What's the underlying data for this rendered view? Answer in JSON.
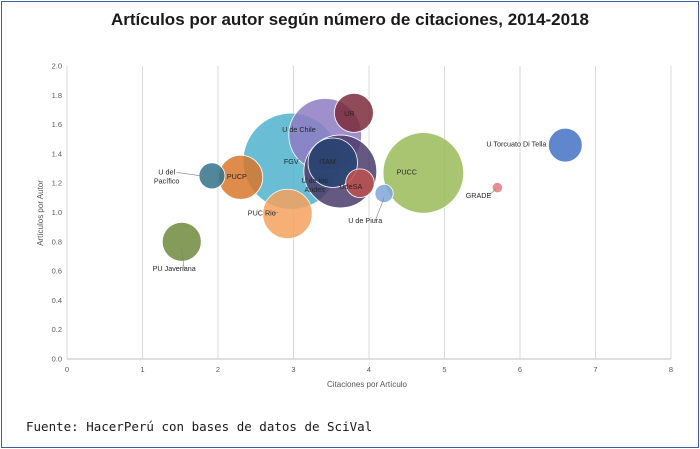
{
  "figure": {
    "title": "Artículos por autor según número de citaciones, 2014-2018",
    "source": "Fuente: HacerPerú con bases de datos de SciVal"
  },
  "chart_data": {
    "type": "scatter",
    "subtype": "bubble",
    "title": "Artículos por autor según número de citaciones, 2014-2018",
    "xlabel": "Citaciones por Artículo",
    "ylabel": "Artículos por Autor",
    "xlim": [
      0,
      8
    ],
    "ylim": [
      0,
      2.0
    ],
    "xticks": [
      "0",
      "1",
      "2",
      "3",
      "4",
      "5",
      "6",
      "7",
      "8"
    ],
    "yticks": [
      "0.0",
      "0.2",
      "0.4",
      "0.6",
      "0.8",
      "1.0",
      "1.2",
      "1.4",
      "1.6",
      "1.8",
      "2.0"
    ],
    "grid": "vertical",
    "legend": "none",
    "series": [
      {
        "label": "FGV",
        "x": 2.97,
        "y": 1.35,
        "size": 37,
        "color": "#4fb3cf"
      },
      {
        "label": "U de Chile",
        "x": 3.42,
        "y": 1.53,
        "size": 28,
        "color": "#8e7cc3"
      },
      {
        "label": "U de los Andes",
        "x": 3.62,
        "y": 1.28,
        "size": 28,
        "color": "#4a3b6b"
      },
      {
        "label": "ITAM",
        "x": 3.52,
        "y": 1.34,
        "size": 19,
        "color": "#274472"
      },
      {
        "label": "UR",
        "x": 3.8,
        "y": 1.68,
        "size": 15,
        "color": "#7b2c3a"
      },
      {
        "label": "UdeSA",
        "x": 3.88,
        "y": 1.2,
        "size": 11,
        "color": "#c0504d"
      },
      {
        "label": "PUCC",
        "x": 4.72,
        "y": 1.27,
        "size": 31,
        "color": "#9bbb59"
      },
      {
        "label": "U de Piura",
        "x": 4.2,
        "y": 1.13,
        "size": 7,
        "color": "#7ea6d8"
      },
      {
        "label": "U Torcuato Di Tella",
        "x": 6.6,
        "y": 1.46,
        "size": 13,
        "color": "#4472c4"
      },
      {
        "label": "GRADE",
        "x": 5.7,
        "y": 1.17,
        "size": 4,
        "color": "#e07b82"
      },
      {
        "label": "PUCP",
        "x": 2.3,
        "y": 1.24,
        "size": 17,
        "color": "#d9772b"
      },
      {
        "label": "U del Pacífico",
        "x": 1.92,
        "y": 1.25,
        "size": 10,
        "color": "#31728c"
      },
      {
        "label": "PUC Rio",
        "x": 2.92,
        "y": 0.99,
        "size": 19,
        "color": "#f5a25d"
      },
      {
        "label": "PU Javeriana",
        "x": 1.52,
        "y": 0.8,
        "size": 15,
        "color": "#6e8a3c"
      }
    ],
    "annotations": [
      {
        "text": "U de Chile",
        "lines": [
          "U de Chile"
        ],
        "x": 2.85,
        "y": 1.55,
        "anchor": "start"
      },
      {
        "text": "UR",
        "lines": [
          "UR"
        ],
        "x": 3.67,
        "y": 1.66,
        "anchor": "start"
      },
      {
        "text": "FGV",
        "lines": [
          "FGV"
        ],
        "x": 2.97,
        "y": 1.33,
        "anchor": "middle"
      },
      {
        "text": "ITAM",
        "lines": [
          "ITAM"
        ],
        "x": 3.45,
        "y": 1.33,
        "anchor": "middle"
      },
      {
        "text": "U de los Andes",
        "lines": [
          "U de los",
          "Andes"
        ],
        "x": 3.28,
        "y": 1.2,
        "anchor": "middle"
      },
      {
        "text": "UdeSA",
        "lines": [
          "UdeSA"
        ],
        "x": 3.76,
        "y": 1.16,
        "anchor": "middle"
      },
      {
        "text": "PUCC",
        "lines": [
          "PUCC"
        ],
        "x": 4.5,
        "y": 1.26,
        "anchor": "middle"
      },
      {
        "text": "PUCP",
        "lines": [
          "PUCP"
        ],
        "x": 2.25,
        "y": 1.23,
        "anchor": "middle"
      },
      {
        "text": "U del Pacífico",
        "lines": [
          "U del",
          "Pacífico"
        ],
        "x": 1.32,
        "y": 1.26,
        "anchor": "middle",
        "leader_to": [
          1.92,
          1.24
        ]
      },
      {
        "text": "PUC Rio",
        "lines": [
          "PUC Rio"
        ],
        "x": 2.58,
        "y": 0.98,
        "anchor": "middle",
        "leader_to": [
          2.8,
          1.0
        ]
      },
      {
        "text": "PU Javeriana",
        "lines": [
          "PU Javeriana"
        ],
        "x": 1.42,
        "y": 0.6,
        "anchor": "middle",
        "leader_to": [
          1.52,
          0.75
        ]
      },
      {
        "text": "U de Piura",
        "lines": [
          "U de Piura"
        ],
        "x": 3.95,
        "y": 0.93,
        "anchor": "middle",
        "leader_to": [
          4.2,
          1.1
        ]
      },
      {
        "text": "GRADE",
        "lines": [
          "GRADE"
        ],
        "x": 5.45,
        "y": 1.1,
        "anchor": "middle",
        "leader_to": [
          5.68,
          1.16
        ]
      },
      {
        "text": "U Torcuato Di Tella",
        "lines": [
          "U Torcuato Di Tella"
        ],
        "x": 6.35,
        "y": 1.45,
        "anchor": "end"
      }
    ]
  }
}
